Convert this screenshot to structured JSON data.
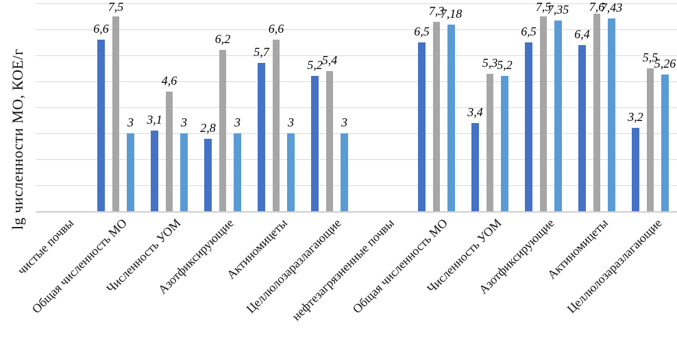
{
  "chart_data": {
    "type": "bar",
    "title": "",
    "ylabel": "lg численности МО, КОЕ/г",
    "xlabel": "",
    "ylim": [
      0,
      8
    ],
    "gridline_step": 1,
    "grid": "horizontal",
    "legend_position": "none",
    "y_tick_labels_visible": false,
    "data_labels": "above bars, italic, decimal comma",
    "decimal_separator": ",",
    "categories": [
      "чистые почвы",
      "Общая численность МО",
      "Численность УОМ",
      "Азотфиксирующие",
      "Актиномицеты",
      "Целлюлозаразлагающие",
      "нефтезагрязненные почвы",
      "Общая численность МО",
      "Численность УОМ",
      "Азотфиксирующие",
      "Актиномицеты",
      "Целлюлозаразлагающие"
    ],
    "series": [
      {
        "name": "dark-blue-series",
        "color": "#4472C4",
        "values": [
          null,
          6.6,
          3.1,
          2.8,
          5.7,
          5.2,
          null,
          6.5,
          3.4,
          6.5,
          6.4,
          3.2
        ]
      },
      {
        "name": "gray-series",
        "color": "#A6A6A6",
        "values": [
          null,
          7.5,
          4.6,
          6.2,
          6.6,
          5.4,
          null,
          7.3,
          5.3,
          7.5,
          7.6,
          5.5
        ]
      },
      {
        "name": "light-blue-series",
        "color": "#5B9BD5",
        "values": [
          null,
          3,
          3,
          3,
          3,
          3,
          null,
          7.18,
          5.2,
          7.35,
          7.43,
          5.26
        ]
      }
    ]
  },
  "colors": {
    "gridline": "#d9d9d9",
    "axis_line": "#cfcece",
    "text": "#111111",
    "background": "#ffffff"
  }
}
